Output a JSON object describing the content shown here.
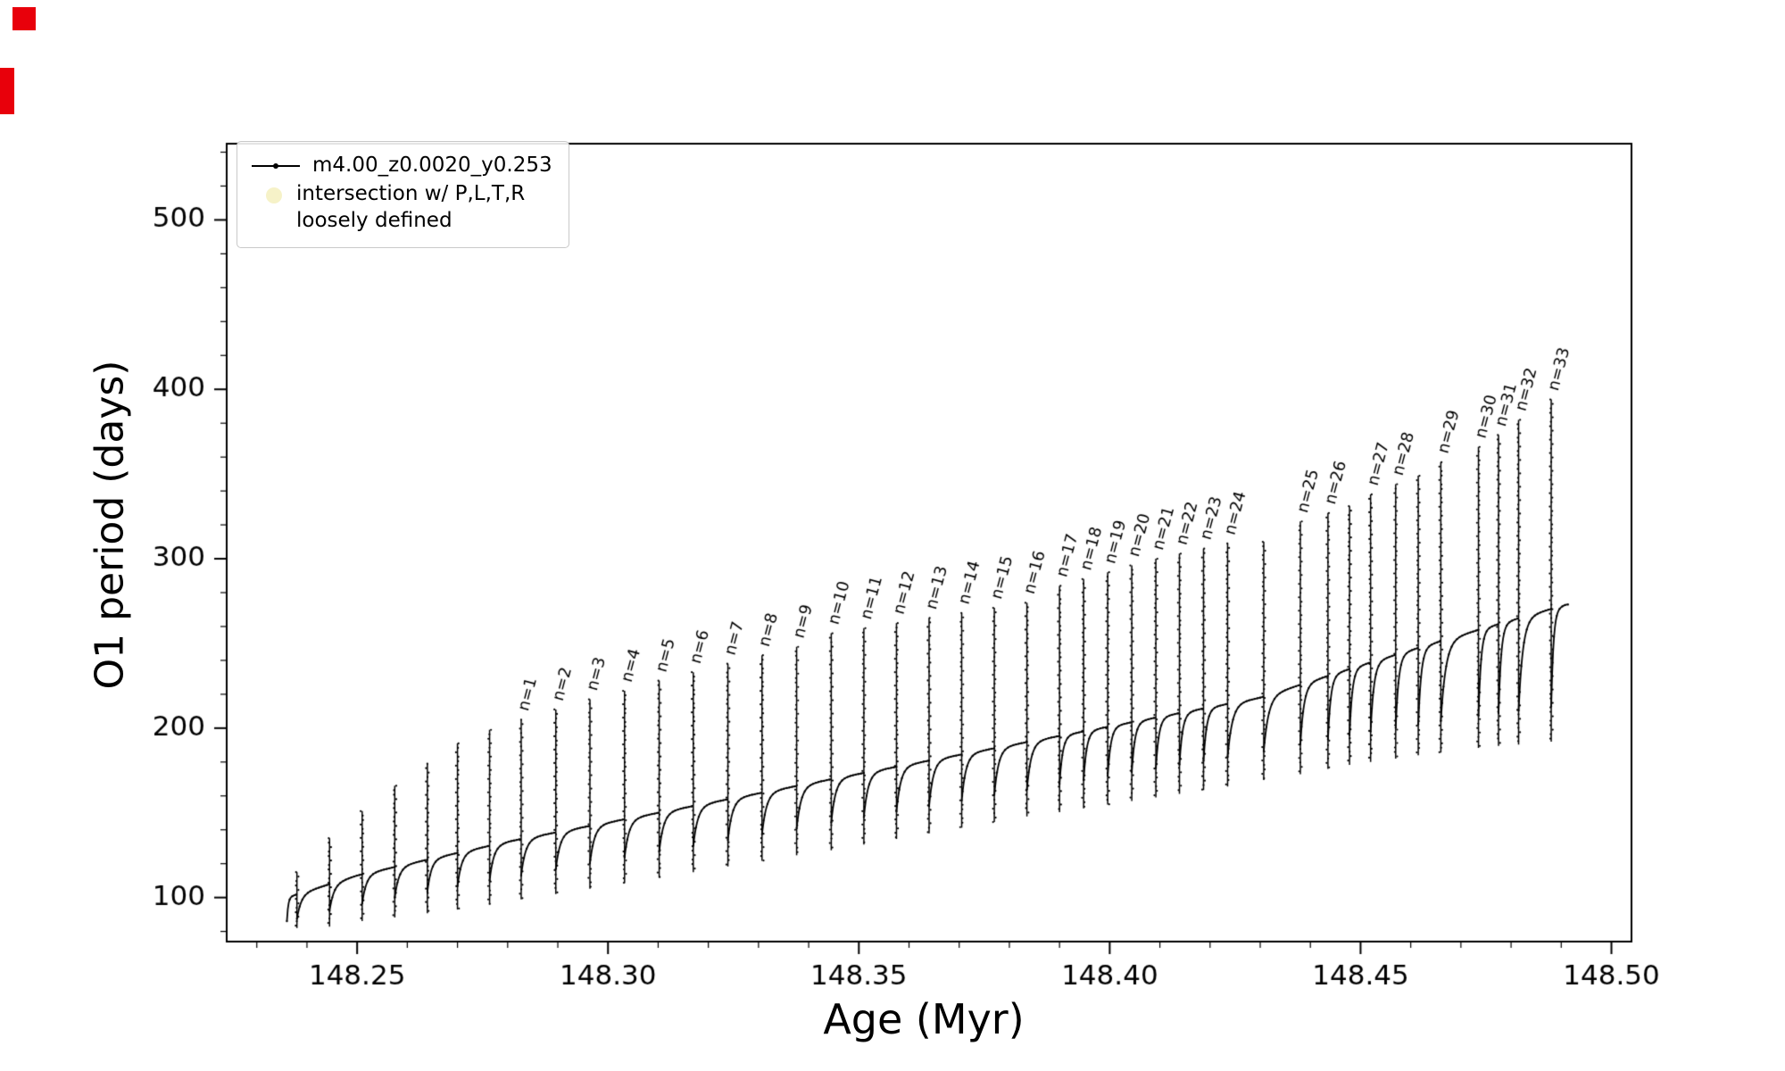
{
  "figure": {
    "background": "#ffffff",
    "marker_color": "#e8000b"
  },
  "legend": {
    "series_label": "m4.00_z0.0020_y0.253",
    "intersection_label": "intersection w/ P,L,T,R\nloosely defined",
    "series_color": "#000000",
    "intersection_color": "#efe89a"
  },
  "chart_data": {
    "type": "line",
    "title": "",
    "xlabel": "Age (Myr)",
    "ylabel": "O1 period (days)",
    "xlim": [
      148.224,
      148.504
    ],
    "ylim": [
      74,
      545
    ],
    "xticks": [
      148.25,
      148.3,
      148.35,
      148.4,
      148.45,
      148.5
    ],
    "xtick_labels": [
      "148.25",
      "148.30",
      "148.35",
      "148.40",
      "148.45",
      "148.50"
    ],
    "x_minor_step": 0.01,
    "yticks": [
      100,
      200,
      300,
      400,
      500
    ],
    "ytick_labels": [
      "100",
      "200",
      "300",
      "400",
      "500"
    ],
    "y_minor_step": 20,
    "grid": false,
    "legend_position": "upper-left",
    "series_name": "m4.00_z0.0020_y0.253",
    "line_color": "#000000",
    "t_start": 148.236,
    "t_end": 148.4915,
    "baseline_envelope": {
      "x": [
        148.236,
        148.25,
        148.28,
        148.31,
        148.35,
        148.4,
        148.43,
        148.45,
        148.47,
        148.491
      ],
      "lower": [
        86,
        96,
        112,
        127,
        147,
        172,
        186,
        197,
        206,
        214
      ],
      "upper": [
        100,
        113,
        133,
        150,
        173,
        201,
        218,
        237,
        255,
        273
      ]
    },
    "spikes": [
      {
        "label": null,
        "age": 148.238,
        "peak": 115
      },
      {
        "label": null,
        "age": 148.2445,
        "peak": 135
      },
      {
        "label": null,
        "age": 148.251,
        "peak": 151
      },
      {
        "label": null,
        "age": 148.2575,
        "peak": 166
      },
      {
        "label": null,
        "age": 148.264,
        "peak": 179
      },
      {
        "label": null,
        "age": 148.27,
        "peak": 191
      },
      {
        "label": null,
        "age": 148.2764,
        "peak": 199
      },
      {
        "label": "n=1",
        "age": 148.2827,
        "peak": 205
      },
      {
        "label": "n=2",
        "age": 148.2896,
        "peak": 211
      },
      {
        "label": "n=3",
        "age": 148.2964,
        "peak": 217
      },
      {
        "label": "n=4",
        "age": 148.3033,
        "peak": 222
      },
      {
        "label": "n=5",
        "age": 148.3102,
        "peak": 228
      },
      {
        "label": "n=6",
        "age": 148.317,
        "peak": 233
      },
      {
        "label": "n=7",
        "age": 148.3239,
        "peak": 238
      },
      {
        "label": "n=8",
        "age": 148.3307,
        "peak": 243
      },
      {
        "label": "n=9",
        "age": 148.3376,
        "peak": 248
      },
      {
        "label": "n=10",
        "age": 148.3445,
        "peak": 256
      },
      {
        "label": "n=11",
        "age": 148.351,
        "peak": 259
      },
      {
        "label": "n=12",
        "age": 148.3575,
        "peak": 262
      },
      {
        "label": "n=13",
        "age": 148.364,
        "peak": 265
      },
      {
        "label": "n=14",
        "age": 148.3705,
        "peak": 268
      },
      {
        "label": "n=15",
        "age": 148.377,
        "peak": 271
      },
      {
        "label": "n=16",
        "age": 148.3835,
        "peak": 274
      },
      {
        "label": "n=17",
        "age": 148.39,
        "peak": 284
      },
      {
        "label": "n=18",
        "age": 148.3948,
        "peak": 288
      },
      {
        "label": "n=19",
        "age": 148.3996,
        "peak": 292
      },
      {
        "label": "n=20",
        "age": 148.4044,
        "peak": 296
      },
      {
        "label": "n=21",
        "age": 148.4092,
        "peak": 300
      },
      {
        "label": "n=22",
        "age": 148.4139,
        "peak": 303
      },
      {
        "label": "n=23",
        "age": 148.4187,
        "peak": 306
      },
      {
        "label": "n=24",
        "age": 148.4235,
        "peak": 309
      },
      {
        "label": null,
        "age": 148.4307,
        "peak": 310
      },
      {
        "label": "n=25",
        "age": 148.438,
        "peak": 322
      },
      {
        "label": "n=26",
        "age": 148.4435,
        "peak": 327
      },
      {
        "label": null,
        "age": 148.4478,
        "peak": 331
      },
      {
        "label": "n=27",
        "age": 148.452,
        "peak": 338
      },
      {
        "label": "n=28",
        "age": 148.457,
        "peak": 344
      },
      {
        "label": null,
        "age": 148.4615,
        "peak": 349
      },
      {
        "label": "n=29",
        "age": 148.466,
        "peak": 357
      },
      {
        "label": "n=30",
        "age": 148.4735,
        "peak": 366
      },
      {
        "label": "n=31",
        "age": 148.4775,
        "peak": 373
      },
      {
        "label": "n=32",
        "age": 148.4815,
        "peak": 382
      },
      {
        "label": "n=33",
        "age": 148.488,
        "peak": 394
      }
    ]
  }
}
